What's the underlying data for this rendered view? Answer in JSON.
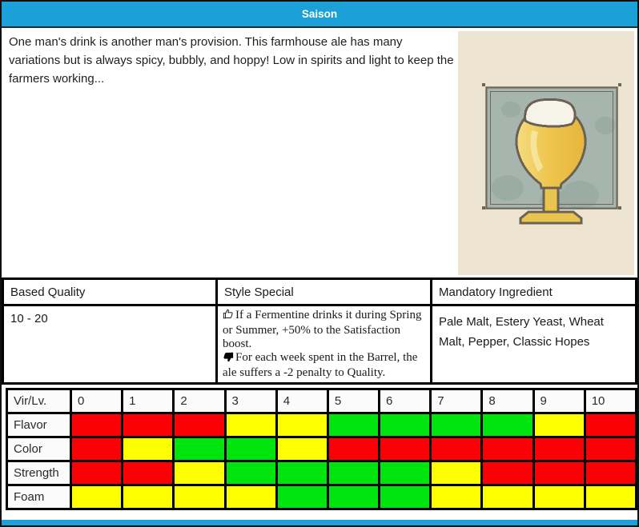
{
  "title": "Saison",
  "description": "One man's drink is another man's provision. This farmhouse ale has many variations but is always spicy, bubbly, and hoppy! Low in spirits and light to keep the farmers working...",
  "info_table": {
    "headers": [
      "Based Quality",
      "Style Special",
      "Mandatory Ingredient"
    ],
    "based_quality": "10 - 20",
    "style_special": {
      "positive": "If a Fermentine drinks it during Spring or Summer, +50% to the Satisfaction boost.",
      "negative": "For each week spent in the Barrel, the ale suffers a -2 penalty to Quality."
    },
    "mandatory_ingredient": "Pale Malt, Estery Yeast, Wheat Malt, Pepper, Classic Hopes"
  },
  "virtue_table": {
    "corner_label": "Vir/Lv.",
    "levels": [
      "0",
      "1",
      "2",
      "3",
      "4",
      "5",
      "6",
      "7",
      "8",
      "9",
      "10"
    ],
    "rows": [
      {
        "label": "Flavor",
        "cells": [
          "red",
          "red",
          "red",
          "yellow",
          "yellow",
          "green",
          "green",
          "green",
          "green",
          "yellow",
          "red"
        ]
      },
      {
        "label": "Color",
        "cells": [
          "red",
          "yellow",
          "green",
          "green",
          "yellow",
          "red",
          "red",
          "red",
          "red",
          "red",
          "red"
        ]
      },
      {
        "label": "Strength",
        "cells": [
          "red",
          "red",
          "yellow",
          "green",
          "green",
          "green",
          "green",
          "yellow",
          "red",
          "red",
          "red"
        ]
      },
      {
        "label": "Foam",
        "cells": [
          "yellow",
          "yellow",
          "yellow",
          "yellow",
          "green",
          "green",
          "green",
          "yellow",
          "yellow",
          "yellow",
          "yellow"
        ]
      }
    ]
  },
  "theme": {
    "accent": "#1BA0D7",
    "cell_colors": {
      "red": "#FB0005",
      "yellow": "#FDFF00",
      "green": "#00E40D"
    },
    "artwork_background": "#EDE4D2",
    "artwork_frame_fill": "#A6B6AE"
  }
}
